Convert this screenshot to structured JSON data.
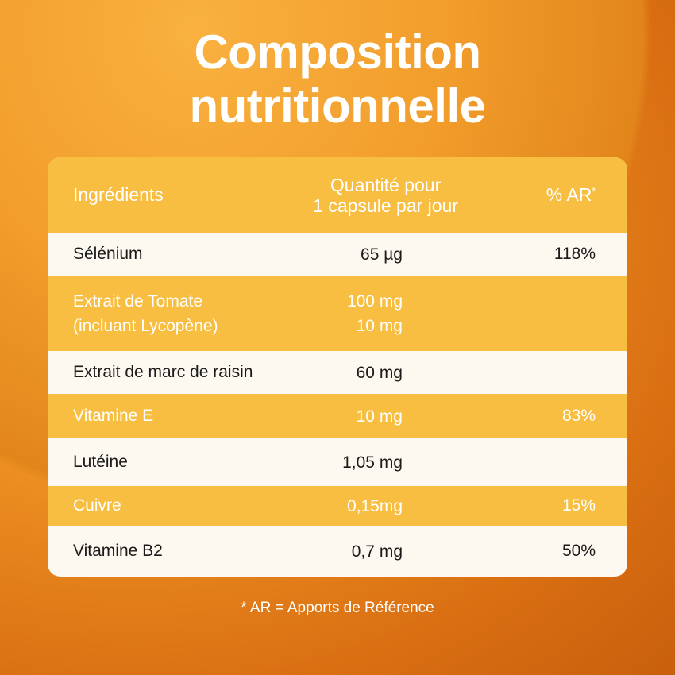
{
  "title": {
    "line1": "Composition",
    "line2": "nutritionnelle"
  },
  "table": {
    "headers": {
      "ingredients": "Ingrédients",
      "quantity_line1": "Quantité pour",
      "quantity_line2": "1 capsule par jour",
      "ar": "% AR",
      "ar_mark": "*"
    },
    "rows": [
      {
        "name": "Sélénium",
        "amount": "65 µg",
        "ar": "118%"
      },
      {
        "name": "Extrait de Tomate",
        "name2": "(incluant Lycopène)",
        "amount": "100 mg",
        "amount2": "10 mg",
        "ar": ""
      },
      {
        "name": "Extrait de marc de raisin",
        "amount": "60 mg",
        "ar": ""
      },
      {
        "name": "Vitamine E",
        "amount": "10 mg",
        "ar": "83%"
      },
      {
        "name": "Lutéine",
        "amount": "1,05 mg",
        "ar": ""
      },
      {
        "name": "Cuivre",
        "amount": "0,15mg",
        "ar": "15%"
      },
      {
        "name": "Vitamine B2",
        "amount": "0,7 mg",
        "ar": "50%"
      }
    ]
  },
  "footnote": "* AR = Apports de Référence",
  "colors": {
    "yellow": "#f8be42",
    "cream": "#fdf8f0",
    "orange": "#ef9424"
  }
}
